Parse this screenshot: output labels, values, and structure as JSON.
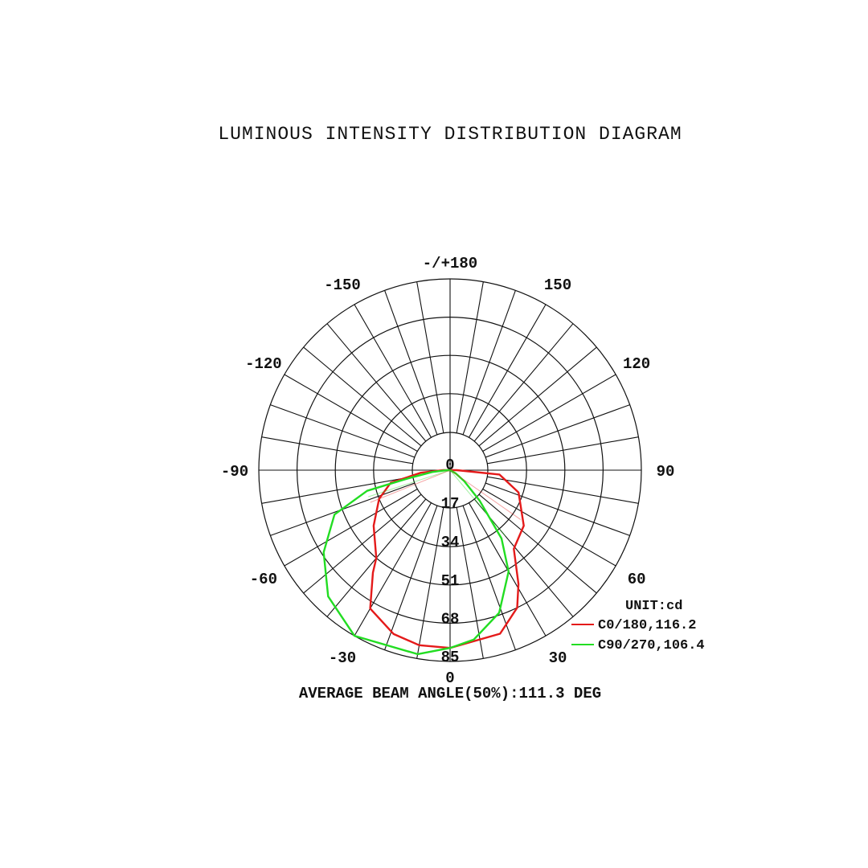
{
  "chart_data": {
    "type": "polar",
    "title": "LUMINOUS INTENSITY DISTRIBUTION DIAGRAM",
    "unit_label": "UNIT:cd",
    "footer": "AVERAGE BEAM ANGLE(50%):111.3 DEG",
    "radial_ticks": [
      "0",
      "17",
      "34",
      "51",
      "68",
      "85"
    ],
    "radial_range": [
      0,
      85
    ],
    "angle_labels": [
      {
        "angle": 180,
        "text": "-/+180"
      },
      {
        "angle": -150,
        "text": "-150"
      },
      {
        "angle": 150,
        "text": "150"
      },
      {
        "angle": -120,
        "text": "-120"
      },
      {
        "angle": 120,
        "text": "120"
      },
      {
        "angle": -90,
        "text": "-90"
      },
      {
        "angle": 90,
        "text": "90"
      },
      {
        "angle": -60,
        "text": "-60"
      },
      {
        "angle": 60,
        "text": "60"
      },
      {
        "angle": -30,
        "text": "-30"
      },
      {
        "angle": 30,
        "text": "30"
      },
      {
        "angle": 0,
        "text": "0"
      }
    ],
    "spoke_step_deg": 10,
    "series": [
      {
        "name": "C0/180,116.2",
        "color": "#e41a1a",
        "points": [
          [
            -90,
            3
          ],
          [
            -85,
            13
          ],
          [
            -78,
            27
          ],
          [
            -68,
            34
          ],
          [
            -54,
            42
          ],
          [
            -40,
            51
          ],
          [
            -37,
            57
          ],
          [
            -30,
            71
          ],
          [
            -19,
            77
          ],
          [
            -10,
            79
          ],
          [
            0,
            79
          ],
          [
            17,
            76
          ],
          [
            26,
            68
          ],
          [
            31,
            59
          ],
          [
            39,
            45
          ],
          [
            53,
            41
          ],
          [
            72,
            32
          ],
          [
            85,
            22
          ],
          [
            90,
            3
          ]
        ]
      },
      {
        "name": "C90/270,106.4",
        "color": "#22dd22",
        "points": [
          [
            -88,
            2
          ],
          [
            -84,
            8
          ],
          [
            -79,
            19
          ],
          [
            -76,
            38
          ],
          [
            -69,
            55
          ],
          [
            -57,
            67
          ],
          [
            -44,
            78
          ],
          [
            -30,
            85
          ],
          [
            -10,
            83
          ],
          [
            0,
            79
          ],
          [
            8,
            76
          ],
          [
            19,
            67
          ],
          [
            30,
            52
          ],
          [
            37,
            38
          ],
          [
            44,
            19
          ],
          [
            52,
            8
          ],
          [
            60,
            3
          ]
        ]
      }
    ]
  }
}
